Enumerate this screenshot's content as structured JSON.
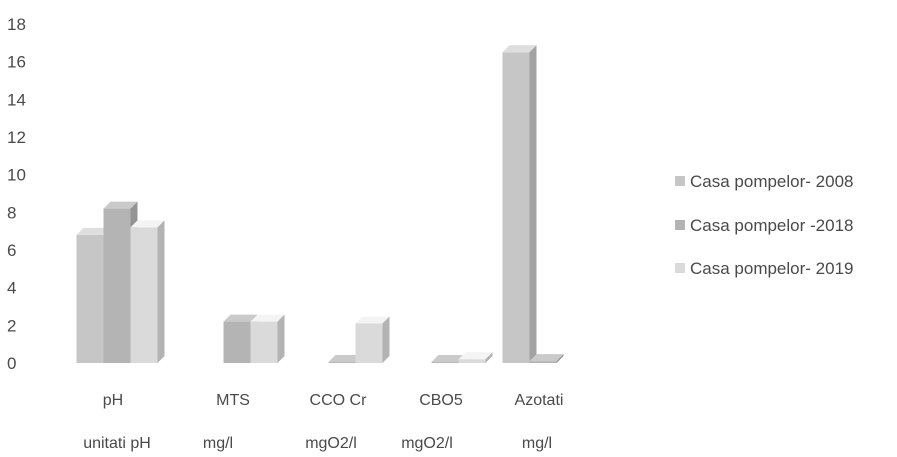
{
  "chart_data": {
    "type": "bar",
    "categories": [
      "pH",
      "MTS",
      "CCO Cr",
      "CBO5",
      "Azotati"
    ],
    "units": [
      "unitati pH",
      "mg/l",
      "mgO2/l",
      "mgO2/l",
      "mg/l"
    ],
    "series": [
      {
        "name": "Casa pompelor- 2008",
        "values": [
          6.8,
          null,
          null,
          null,
          16.5
        ]
      },
      {
        "name": "Casa pompelor -2018",
        "values": [
          8.2,
          2.2,
          0.05,
          0.05,
          0.1
        ]
      },
      {
        "name": "Casa pompelor- 2019",
        "values": [
          7.2,
          2.2,
          2.1,
          0.2,
          null
        ]
      }
    ],
    "yticks": [
      "0",
      "2",
      "4",
      "6",
      "8",
      "10",
      "12",
      "14",
      "16",
      "18"
    ],
    "ylim": [
      0,
      18
    ],
    "grid": false,
    "legend_position": "right",
    "colors": [
      "#c6c6c6",
      "#b4b4b4",
      "#dadada"
    ]
  }
}
